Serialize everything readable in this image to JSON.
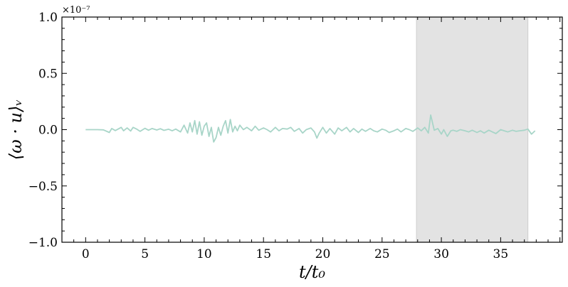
{
  "chart_data": {
    "type": "line",
    "title": "",
    "xlabel": "t/t₀",
    "ylabel": "⟨ω · u⟩ᵥ",
    "y_multiplier": "×10⁻⁷",
    "xlim": [
      -2,
      40.2
    ],
    "ylim": [
      -1.0,
      1.0
    ],
    "xticks": [
      0,
      5,
      10,
      15,
      20,
      25,
      30,
      35
    ],
    "xtick_labels": [
      "0",
      "5",
      "10",
      "15",
      "20",
      "25",
      "30",
      "35"
    ],
    "yticks": [
      -1.0,
      -0.5,
      0.0,
      0.5,
      1.0
    ],
    "ytick_labels": [
      "−1.0",
      "−0.5",
      "0.0",
      "0.5",
      "1.0"
    ],
    "grid": false,
    "shaded_region": {
      "x_start": 27.9,
      "x_end": 37.3,
      "color": "#e3e3e3"
    },
    "series": [
      {
        "color": "#a8d5c8",
        "x": [
          0,
          0.5,
          1.0,
          1.5,
          2.0,
          2.2,
          2.5,
          3.0,
          3.2,
          3.5,
          3.8,
          4.0,
          4.3,
          4.6,
          5.0,
          5.3,
          5.6,
          6.0,
          6.3,
          6.6,
          7.0,
          7.3,
          7.6,
          8.0,
          8.3,
          8.6,
          8.8,
          9.0,
          9.2,
          9.4,
          9.6,
          9.8,
          10.0,
          10.2,
          10.4,
          10.6,
          10.8,
          11.0,
          11.2,
          11.4,
          11.6,
          11.8,
          12.0,
          12.2,
          12.4,
          12.6,
          12.8,
          13.0,
          13.3,
          13.6,
          14.0,
          14.3,
          14.6,
          15.0,
          15.3,
          15.6,
          16.0,
          16.3,
          16.6,
          17.0,
          17.3,
          17.6,
          18.0,
          18.3,
          18.6,
          19.0,
          19.3,
          19.5,
          19.7,
          20.0,
          20.3,
          20.6,
          21.0,
          21.3,
          21.6,
          22.0,
          22.3,
          22.6,
          23.0,
          23.3,
          23.6,
          24.0,
          24.3,
          24.6,
          25.0,
          25.3,
          25.6,
          26.0,
          26.3,
          26.6,
          27.0,
          27.3,
          27.6,
          28.0,
          28.3,
          28.6,
          28.9,
          29.1,
          29.4,
          29.7,
          30.0,
          30.2,
          30.5,
          30.8,
          31.0,
          31.3,
          31.6,
          32.0,
          32.3,
          32.6,
          33.0,
          33.3,
          33.6,
          34.0,
          34.3,
          34.6,
          35.0,
          35.3,
          35.6,
          36.0,
          36.3,
          36.6,
          37.0,
          37.3,
          37.6,
          37.9
        ],
        "y": [
          0.0,
          0.0,
          0.0,
          -0.002,
          -0.025,
          0.01,
          -0.008,
          0.02,
          -0.01,
          0.015,
          -0.012,
          0.02,
          0.005,
          -0.015,
          0.012,
          -0.005,
          0.01,
          -0.003,
          0.008,
          -0.006,
          0.004,
          -0.01,
          0.005,
          -0.02,
          0.04,
          -0.03,
          0.06,
          -0.02,
          0.08,
          -0.04,
          0.07,
          -0.05,
          0.03,
          0.06,
          -0.06,
          0.02,
          -0.11,
          -0.07,
          0.02,
          -0.05,
          0.03,
          0.08,
          -0.03,
          0.09,
          -0.02,
          0.03,
          -0.01,
          0.04,
          0.0,
          0.02,
          -0.01,
          0.03,
          -0.005,
          0.015,
          0.0,
          -0.02,
          0.02,
          -0.01,
          0.01,
          0.005,
          0.02,
          -0.015,
          0.01,
          -0.03,
          0.0,
          0.015,
          -0.02,
          -0.075,
          -0.03,
          0.02,
          -0.03,
          0.01,
          -0.04,
          0.015,
          -0.01,
          0.02,
          -0.02,
          0.01,
          -0.025,
          0.005,
          -0.015,
          0.01,
          -0.01,
          -0.02,
          0.005,
          -0.005,
          -0.025,
          -0.01,
          0.005,
          -0.02,
          0.01,
          0.0,
          -0.015,
          0.015,
          -0.01,
          0.02,
          -0.03,
          0.13,
          -0.005,
          0.01,
          -0.04,
          0.0,
          -0.06,
          -0.01,
          -0.005,
          -0.015,
          0.0,
          -0.01,
          -0.02,
          -0.005,
          -0.025,
          -0.01,
          -0.03,
          -0.005,
          -0.02,
          -0.035,
          0.0,
          -0.01,
          -0.02,
          -0.005,
          -0.015,
          -0.01,
          -0.005,
          0.005,
          -0.04,
          -0.01
        ]
      }
    ]
  }
}
